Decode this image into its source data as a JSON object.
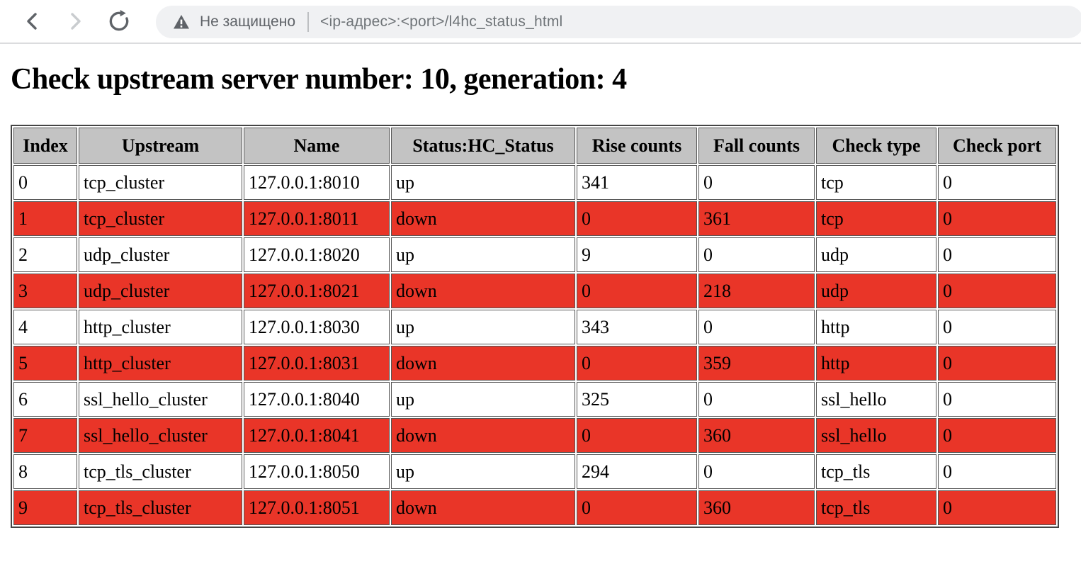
{
  "browser": {
    "security_label": "Не защищено",
    "url": "<ip-адрес>:<port>/l4hc_status_html"
  },
  "icons": {
    "back": "chevron-left",
    "forward": "chevron-right",
    "reload": "circular-arrow",
    "security": "warning-triangle"
  },
  "page": {
    "title": "Check upstream server number: 10, generation: 4"
  },
  "table": {
    "columns": [
      "Index",
      "Upstream",
      "Name",
      "Status:HC_Status",
      "Rise counts",
      "Fall counts",
      "Check type",
      "Check port"
    ],
    "rows": [
      {
        "state": "up",
        "index": "0",
        "upstream": "tcp_cluster",
        "name": "127.0.0.1:8010",
        "status": "up",
        "rise": "341",
        "fall": "0",
        "check_type": "tcp",
        "check_port": "0"
      },
      {
        "state": "down",
        "index": "1",
        "upstream": "tcp_cluster",
        "name": "127.0.0.1:8011",
        "status": "down",
        "rise": "0",
        "fall": "361",
        "check_type": "tcp",
        "check_port": "0"
      },
      {
        "state": "up",
        "index": "2",
        "upstream": "udp_cluster",
        "name": "127.0.0.1:8020",
        "status": "up",
        "rise": "9",
        "fall": "0",
        "check_type": "udp",
        "check_port": "0"
      },
      {
        "state": "down",
        "index": "3",
        "upstream": "udp_cluster",
        "name": "127.0.0.1:8021",
        "status": "down",
        "rise": "0",
        "fall": "218",
        "check_type": "udp",
        "check_port": "0"
      },
      {
        "state": "up",
        "index": "4",
        "upstream": "http_cluster",
        "name": "127.0.0.1:8030",
        "status": "up",
        "rise": "343",
        "fall": "0",
        "check_type": "http",
        "check_port": "0"
      },
      {
        "state": "down",
        "index": "5",
        "upstream": "http_cluster",
        "name": "127.0.0.1:8031",
        "status": "down",
        "rise": "0",
        "fall": "359",
        "check_type": "http",
        "check_port": "0"
      },
      {
        "state": "up",
        "index": "6",
        "upstream": "ssl_hello_cluster",
        "name": "127.0.0.1:8040",
        "status": "up",
        "rise": "325",
        "fall": "0",
        "check_type": "ssl_hello",
        "check_port": "0"
      },
      {
        "state": "down",
        "index": "7",
        "upstream": "ssl_hello_cluster",
        "name": "127.0.0.1:8041",
        "status": "down",
        "rise": "0",
        "fall": "360",
        "check_type": "ssl_hello",
        "check_port": "0"
      },
      {
        "state": "up",
        "index": "8",
        "upstream": "tcp_tls_cluster",
        "name": "127.0.0.1:8050",
        "status": "up",
        "rise": "294",
        "fall": "0",
        "check_type": "tcp_tls",
        "check_port": "0"
      },
      {
        "state": "down",
        "index": "9",
        "upstream": "tcp_tls_cluster",
        "name": "127.0.0.1:8051",
        "status": "down",
        "rise": "0",
        "fall": "360",
        "check_type": "tcp_tls",
        "check_port": "0"
      }
    ],
    "colors": {
      "header_bg": "#c3c3c3",
      "down_bg": "#e93528",
      "up_bg": "#ffffff",
      "border": "#565656"
    }
  }
}
